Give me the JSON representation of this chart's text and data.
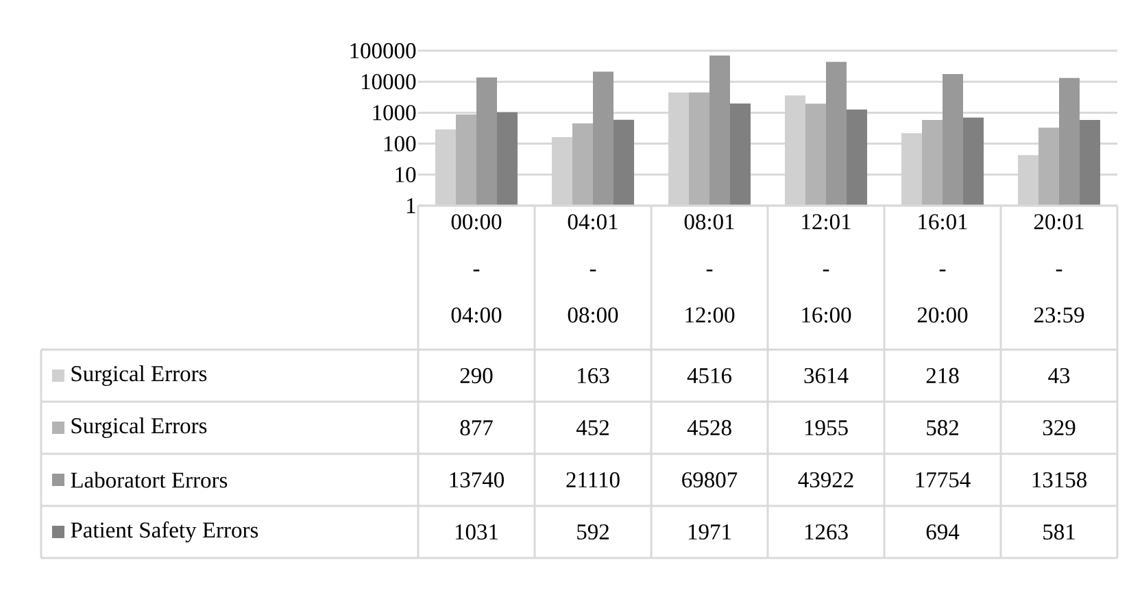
{
  "chart_data": {
    "type": "bar",
    "categories": [
      "00:00 - 04:00",
      "04:01 - 08:00",
      "08:01 - 12:00",
      "12:01 - 16:00",
      "16:01 - 20:00",
      "20:01 - 23:59"
    ],
    "series": [
      {
        "name": "Surgical Errors",
        "color": "#d0d0d0",
        "values": [
          290,
          163,
          4516,
          3614,
          218,
          43
        ]
      },
      {
        "name": "Surgical Errors",
        "color": "#b3b3b3",
        "values": [
          877,
          452,
          4528,
          1955,
          582,
          329
        ]
      },
      {
        "name": "Laboratort Errors",
        "color": "#999999",
        "values": [
          13740,
          21110,
          69807,
          43922,
          17754,
          13158
        ]
      },
      {
        "name": "Patient Safety Errors",
        "color": "#808080",
        "values": [
          1031,
          592,
          1971,
          1263,
          694,
          581
        ]
      }
    ],
    "log": "y",
    "ylim": [
      1,
      100000
    ],
    "yticks": [
      1,
      10,
      100,
      1000,
      10000,
      100000
    ],
    "grid": "y",
    "legend": "bottom",
    "data_labels": true
  }
}
